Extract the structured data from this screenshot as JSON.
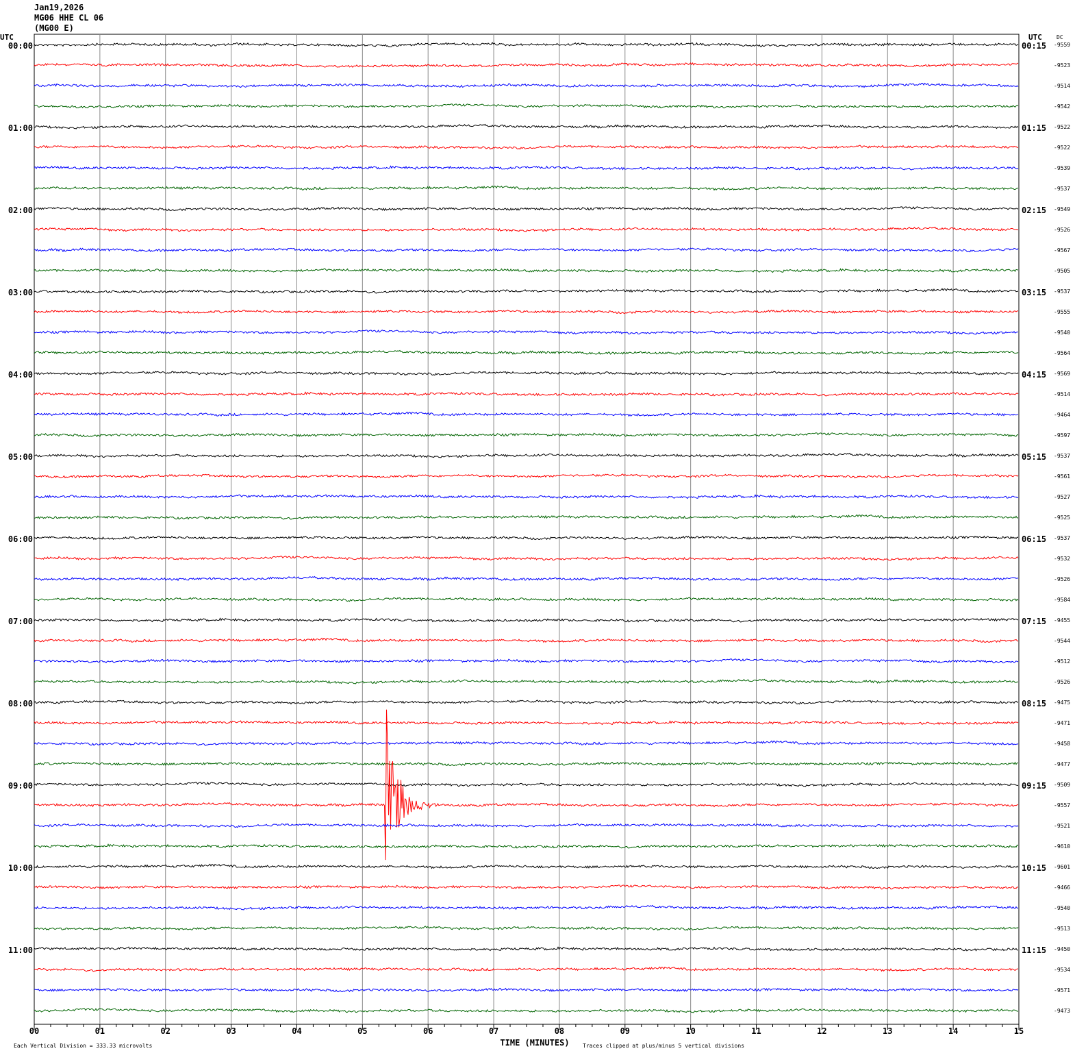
{
  "header": {
    "date": "Jan19,2026",
    "station": "MG06 HHE CL 06",
    "channel": "(MG00 E)"
  },
  "chart_data": {
    "type": "line",
    "left_axis_label": "UTC",
    "right_axis_label": "UTC",
    "dc_label": "DC",
    "xlabel": "TIME (MINUTES)",
    "xlim": [
      0,
      15
    ],
    "x_ticks": [
      "00",
      "01",
      "02",
      "03",
      "04",
      "05",
      "06",
      "07",
      "08",
      "09",
      "10",
      "11",
      "12",
      "13",
      "14",
      "15"
    ],
    "grid": true,
    "colors": [
      "#000000",
      "#ff0000",
      "#0000ff",
      "#006400"
    ],
    "left_hour_labels": [
      "00:00",
      "01:00",
      "02:00",
      "03:00",
      "04:00",
      "05:00",
      "06:00",
      "07:00",
      "08:00",
      "09:00",
      "10:00",
      "11:00"
    ],
    "right_hour_labels": [
      "00:15",
      "01:15",
      "02:15",
      "03:15",
      "04:15",
      "05:15",
      "06:15",
      "07:15",
      "08:15",
      "09:15",
      "10:15",
      "11:15"
    ],
    "dc_values": [
      -9559,
      -9523,
      -9514,
      -9542,
      -9522,
      -9522,
      -9539,
      -9537,
      -9549,
      -9526,
      -9567,
      -9505,
      -9537,
      -9555,
      -9540,
      -9564,
      -9569,
      -9514,
      -9464,
      -9597,
      -9537,
      -9561,
      -9527,
      -9525,
      -9537,
      -9532,
      -9526,
      -9584,
      -9455,
      -9544,
      -9512,
      -9526,
      -9475,
      -9471,
      -9458,
      -9477,
      -9509,
      -9557,
      -9521,
      -9610,
      -9601,
      -9466,
      -9540,
      -9513,
      -9450,
      -9534,
      -9571,
      -9473
    ],
    "event": {
      "trace_start": "09:15",
      "minute": 5.35
    }
  },
  "footer": {
    "scale": "Each Vertical Division =  333.33 microvolts",
    "clip_note": "Traces clipped at plus/minus 5 vertical divisions"
  }
}
